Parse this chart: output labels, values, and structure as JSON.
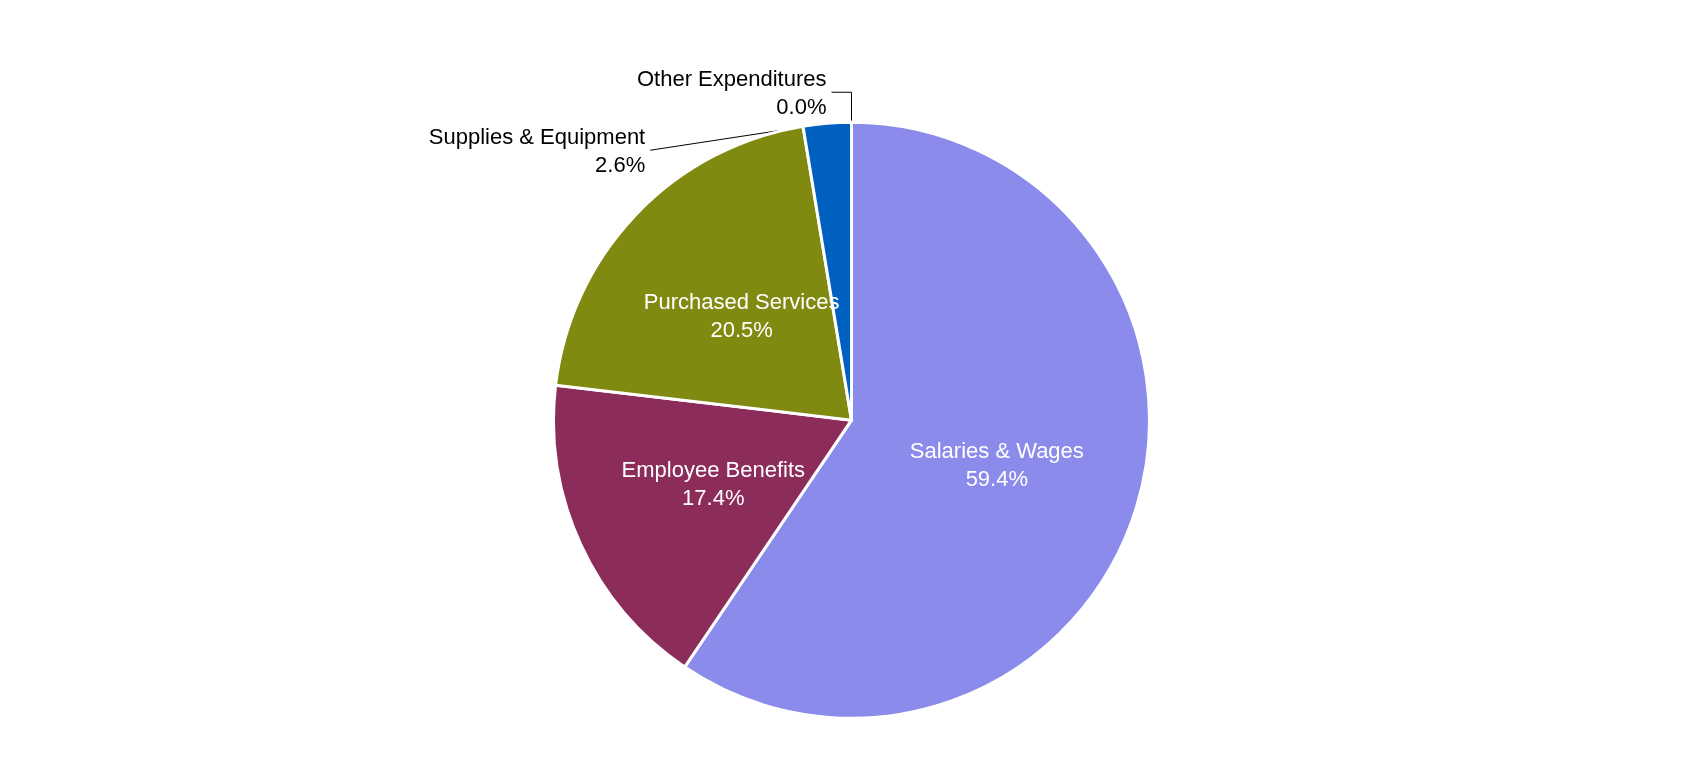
{
  "chart_data": {
    "type": "pie",
    "categories": [
      "Salaries & Wages",
      "Employee Benefits",
      "Purchased Services",
      "Supplies & Equipment",
      "Other Expenditures"
    ],
    "values": [
      59.4,
      17.4,
      20.5,
      2.6,
      0.0
    ],
    "colors": [
      "#8b8beb",
      "#8b2c5a",
      "#808a10",
      "#0060c0",
      "#d4a000"
    ],
    "value_labels": [
      "59.4%",
      "17.4%",
      "20.5%",
      "2.6%",
      "0.0%"
    ],
    "legend": false
  }
}
